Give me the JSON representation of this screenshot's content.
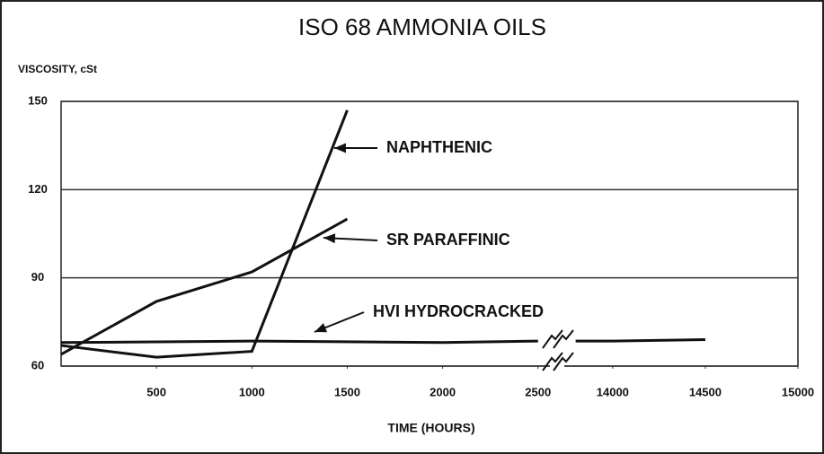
{
  "chart_data": {
    "type": "line",
    "title": "ISO 68 AMMONIA OILS",
    "y_label": "VISCOSITY, cSt",
    "x_label": "TIME (HOURS)",
    "xlim": [
      0,
      15000
    ],
    "xticks": [
      500,
      1000,
      1500,
      2000,
      2500,
      14000,
      14500,
      15000
    ],
    "axis_break": [
      2600,
      13700
    ],
    "ylim": [
      60,
      150
    ],
    "yticks": [
      60,
      90,
      120,
      150
    ],
    "grid": true,
    "series": [
      {
        "name": "NAPHTHENIC",
        "color": "#111111",
        "x": [
          0,
          500,
          1000,
          1500
        ],
        "values": [
          67,
          63,
          65,
          147
        ]
      },
      {
        "name": "SR PARAFFINIC",
        "color": "#111111",
        "x": [
          0,
          500,
          1000,
          1500
        ],
        "values": [
          64,
          82,
          92,
          110
        ]
      },
      {
        "name": "HVI HYDROCRACKED",
        "color": "#111111",
        "x": [
          0,
          1000,
          2000,
          2500,
          13800,
          14000,
          14500
        ],
        "values": [
          68,
          68.5,
          68,
          68.5,
          68.5,
          68.5,
          69
        ]
      }
    ]
  }
}
